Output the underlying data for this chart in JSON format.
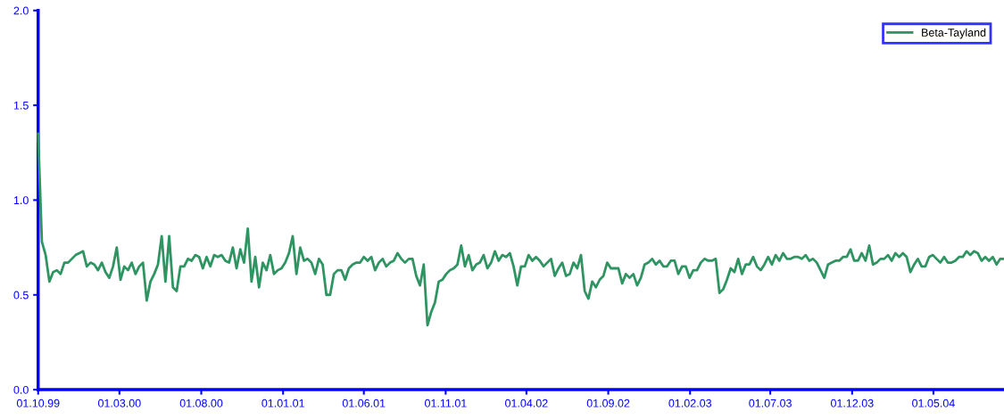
{
  "chart_data": {
    "type": "line",
    "x": [
      "1999-10-01",
      "1999-10-08",
      "1999-10-15",
      "1999-10-22",
      "1999-10-29",
      "1999-11-05",
      "1999-11-12",
      "1999-11-19",
      "1999-11-26",
      "1999-12-03",
      "1999-12-10",
      "1999-12-17",
      "1999-12-24",
      "1999-12-31",
      "2000-01-07",
      "2000-01-14",
      "2000-01-21",
      "2000-01-28",
      "2000-02-04",
      "2000-02-11",
      "2000-02-18",
      "2000-02-25",
      "2000-03-03",
      "2000-03-10",
      "2000-03-17",
      "2000-03-24",
      "2000-03-31",
      "2000-04-07",
      "2000-04-14",
      "2000-04-21",
      "2000-04-28",
      "2000-05-05",
      "2000-05-12",
      "2000-05-19",
      "2000-05-26",
      "2000-06-02",
      "2000-06-09",
      "2000-06-16",
      "2000-06-23",
      "2000-06-30",
      "2000-07-07",
      "2000-07-14",
      "2000-07-21",
      "2000-07-28",
      "2000-08-04",
      "2000-08-11",
      "2000-08-18",
      "2000-08-25",
      "2000-09-01",
      "2000-09-08",
      "2000-09-15",
      "2000-09-22",
      "2000-09-29",
      "2000-10-06",
      "2000-10-13",
      "2000-10-20",
      "2000-10-27",
      "2000-11-03",
      "2000-11-10",
      "2000-11-17",
      "2000-11-24",
      "2000-12-01",
      "2000-12-08",
      "2000-12-15",
      "2000-12-22",
      "2000-12-29",
      "2001-01-05",
      "2001-01-12",
      "2001-01-19",
      "2001-01-26",
      "2001-02-02",
      "2001-02-09",
      "2001-02-16",
      "2001-02-23",
      "2001-03-02",
      "2001-03-09",
      "2001-03-16",
      "2001-03-23",
      "2001-03-30",
      "2001-04-06",
      "2001-04-13",
      "2001-04-20",
      "2001-04-27",
      "2001-05-04",
      "2001-05-11",
      "2001-05-18",
      "2001-05-25",
      "2001-06-01",
      "2001-06-08",
      "2001-06-15",
      "2001-06-22",
      "2001-06-29",
      "2001-07-06",
      "2001-07-13",
      "2001-07-20",
      "2001-07-27",
      "2001-08-03",
      "2001-08-10",
      "2001-08-17",
      "2001-08-24",
      "2001-08-31",
      "2001-09-07",
      "2001-09-14",
      "2001-09-21",
      "2001-09-28",
      "2001-10-05",
      "2001-10-12",
      "2001-10-19",
      "2001-10-26",
      "2001-11-02",
      "2001-11-09",
      "2001-11-16",
      "2001-11-23",
      "2001-11-30",
      "2001-12-07",
      "2001-12-14",
      "2001-12-21",
      "2001-12-28",
      "2002-01-04",
      "2002-01-11",
      "2002-01-18",
      "2002-01-25",
      "2002-02-01",
      "2002-02-08",
      "2002-02-15",
      "2002-02-22",
      "2002-03-01",
      "2002-03-08",
      "2002-03-15",
      "2002-03-22",
      "2002-03-29",
      "2002-04-05",
      "2002-04-12",
      "2002-04-19",
      "2002-04-26",
      "2002-05-03",
      "2002-05-10",
      "2002-05-17",
      "2002-05-24",
      "2002-05-31",
      "2002-06-07",
      "2002-06-14",
      "2002-06-21",
      "2002-06-28",
      "2002-07-05",
      "2002-07-12",
      "2002-07-19",
      "2002-07-26",
      "2002-08-02",
      "2002-08-09",
      "2002-08-16",
      "2002-08-23",
      "2002-08-30",
      "2002-09-06",
      "2002-09-13",
      "2002-09-20",
      "2002-09-27",
      "2002-10-04",
      "2002-10-11",
      "2002-10-18",
      "2002-10-25",
      "2002-11-01",
      "2002-11-08",
      "2002-11-15",
      "2002-11-22",
      "2002-11-29",
      "2002-12-06",
      "2002-12-13",
      "2002-12-20",
      "2002-12-27",
      "2003-01-03",
      "2003-01-10",
      "2003-01-17",
      "2003-01-24",
      "2003-01-31",
      "2003-02-07",
      "2003-02-14",
      "2003-02-21",
      "2003-02-28",
      "2003-03-07",
      "2003-03-14",
      "2003-03-21",
      "2003-03-28",
      "2003-04-04",
      "2003-04-11",
      "2003-04-18",
      "2003-04-25",
      "2003-05-02",
      "2003-05-09",
      "2003-05-16",
      "2003-05-23",
      "2003-05-30",
      "2003-06-06",
      "2003-06-13",
      "2003-06-20",
      "2003-06-27",
      "2003-07-04",
      "2003-07-11",
      "2003-07-18",
      "2003-07-25",
      "2003-08-01",
      "2003-08-08",
      "2003-08-15",
      "2003-08-22",
      "2003-08-29",
      "2003-09-05",
      "2003-09-12",
      "2003-09-19",
      "2003-09-26",
      "2003-10-03",
      "2003-10-10",
      "2003-10-17",
      "2003-10-24",
      "2003-10-31",
      "2003-11-07",
      "2003-11-14",
      "2003-11-21",
      "2003-11-28",
      "2003-12-05",
      "2003-12-12",
      "2003-12-19",
      "2003-12-26",
      "2004-01-02",
      "2004-01-09",
      "2004-01-16",
      "2004-01-23",
      "2004-01-30",
      "2004-02-06",
      "2004-02-13",
      "2004-02-20",
      "2004-02-27",
      "2004-03-05",
      "2004-03-12",
      "2004-03-19",
      "2004-03-26",
      "2004-04-02",
      "2004-04-09",
      "2004-04-16",
      "2004-04-23",
      "2004-04-30",
      "2004-05-07",
      "2004-05-14",
      "2004-05-21",
      "2004-05-28",
      "2004-06-04",
      "2004-06-11",
      "2004-06-18",
      "2004-06-25",
      "2004-07-02",
      "2004-07-09",
      "2004-07-16",
      "2004-07-23",
      "2004-07-30",
      "2004-08-06",
      "2004-08-13",
      "2004-08-20",
      "2004-08-27",
      "2004-09-03",
      "2004-09-10"
    ],
    "series": [
      {
        "name": "Beta-Tayland",
        "color": "#2e9462",
        "values": [
          1.35,
          0.78,
          0.71,
          0.57,
          0.62,
          0.63,
          0.61,
          0.67,
          0.67,
          0.69,
          0.71,
          0.72,
          0.73,
          0.65,
          0.67,
          0.66,
          0.63,
          0.67,
          0.62,
          0.59,
          0.65,
          0.75,
          0.58,
          0.65,
          0.63,
          0.67,
          0.61,
          0.65,
          0.67,
          0.47,
          0.57,
          0.61,
          0.66,
          0.81,
          0.57,
          0.81,
          0.54,
          0.52,
          0.65,
          0.65,
          0.69,
          0.68,
          0.71,
          0.7,
          0.64,
          0.7,
          0.65,
          0.71,
          0.7,
          0.71,
          0.68,
          0.67,
          0.75,
          0.64,
          0.74,
          0.67,
          0.85,
          0.57,
          0.7,
          0.54,
          0.67,
          0.63,
          0.71,
          0.61,
          0.63,
          0.64,
          0.67,
          0.72,
          0.81,
          0.61,
          0.75,
          0.68,
          0.69,
          0.67,
          0.61,
          0.69,
          0.66,
          0.5,
          0.5,
          0.61,
          0.63,
          0.63,
          0.58,
          0.64,
          0.66,
          0.67,
          0.67,
          0.7,
          0.68,
          0.7,
          0.63,
          0.67,
          0.69,
          0.65,
          0.67,
          0.68,
          0.72,
          0.69,
          0.67,
          0.69,
          0.69,
          0.6,
          0.55,
          0.66,
          0.34,
          0.41,
          0.46,
          0.57,
          0.58,
          0.61,
          0.63,
          0.64,
          0.66,
          0.76,
          0.65,
          0.71,
          0.63,
          0.66,
          0.67,
          0.71,
          0.64,
          0.67,
          0.73,
          0.68,
          0.71,
          0.7,
          0.72,
          0.65,
          0.55,
          0.65,
          0.65,
          0.71,
          0.68,
          0.7,
          0.68,
          0.65,
          0.67,
          0.69,
          0.6,
          0.64,
          0.67,
          0.6,
          0.61,
          0.67,
          0.64,
          0.71,
          0.52,
          0.48,
          0.57,
          0.54,
          0.58,
          0.6,
          0.67,
          0.64,
          0.64,
          0.64,
          0.56,
          0.61,
          0.59,
          0.61,
          0.55,
          0.59,
          0.66,
          0.67,
          0.69,
          0.66,
          0.68,
          0.65,
          0.65,
          0.68,
          0.68,
          0.61,
          0.65,
          0.65,
          0.59,
          0.63,
          0.63,
          0.67,
          0.69,
          0.68,
          0.68,
          0.69,
          0.51,
          0.53,
          0.58,
          0.64,
          0.62,
          0.69,
          0.61,
          0.66,
          0.66,
          0.7,
          0.65,
          0.63,
          0.66,
          0.7,
          0.66,
          0.71,
          0.68,
          0.72,
          0.69,
          0.69,
          0.7,
          0.7,
          0.69,
          0.71,
          0.68,
          0.69,
          0.67,
          0.63,
          0.59,
          0.66,
          0.67,
          0.68,
          0.68,
          0.7,
          0.7,
          0.74,
          0.68,
          0.68,
          0.72,
          0.68,
          0.76,
          0.66,
          0.67,
          0.69,
          0.69,
          0.71,
          0.68,
          0.72,
          0.7,
          0.72,
          0.7,
          0.62,
          0.66,
          0.69,
          0.65,
          0.65,
          0.7,
          0.71,
          0.69,
          0.67,
          0.7,
          0.67,
          0.67,
          0.68,
          0.7,
          0.7,
          0.73,
          0.71,
          0.73,
          0.72,
          0.68,
          0.7,
          0.68,
          0.7,
          0.66,
          0.69,
          0.69
        ]
      }
    ],
    "xlim": [
      "1999-10-01",
      "2004-09-10"
    ],
    "xticks": [
      {
        "value": "1999-10-01",
        "label": "01.10.99"
      },
      {
        "value": "2000-03-01",
        "label": "01.03.00"
      },
      {
        "value": "2000-08-01",
        "label": "01.08.00"
      },
      {
        "value": "2001-01-01",
        "label": "01.01.01"
      },
      {
        "value": "2001-06-01",
        "label": "01.06.01"
      },
      {
        "value": "2001-11-01",
        "label": "01.11.01"
      },
      {
        "value": "2002-04-01",
        "label": "01.04.02"
      },
      {
        "value": "2002-09-01",
        "label": "01.09.02"
      },
      {
        "value": "2003-02-01",
        "label": "01.02.03"
      },
      {
        "value": "2003-07-01",
        "label": "01.07.03"
      },
      {
        "value": "2003-12-01",
        "label": "01.12.03"
      },
      {
        "value": "2004-05-01",
        "label": "01.05.04"
      }
    ],
    "ylim": [
      0,
      2
    ],
    "yticks": [
      {
        "value": 0,
        "label": "0.0"
      },
      {
        "value": 0.5,
        "label": "0.5"
      },
      {
        "value": 1,
        "label": "1.0"
      },
      {
        "value": 1.5,
        "label": "1.5"
      },
      {
        "value": 2,
        "label": "2.0"
      }
    ],
    "grid": false,
    "legend": "top right",
    "line_style": "solid",
    "marker": "none"
  }
}
